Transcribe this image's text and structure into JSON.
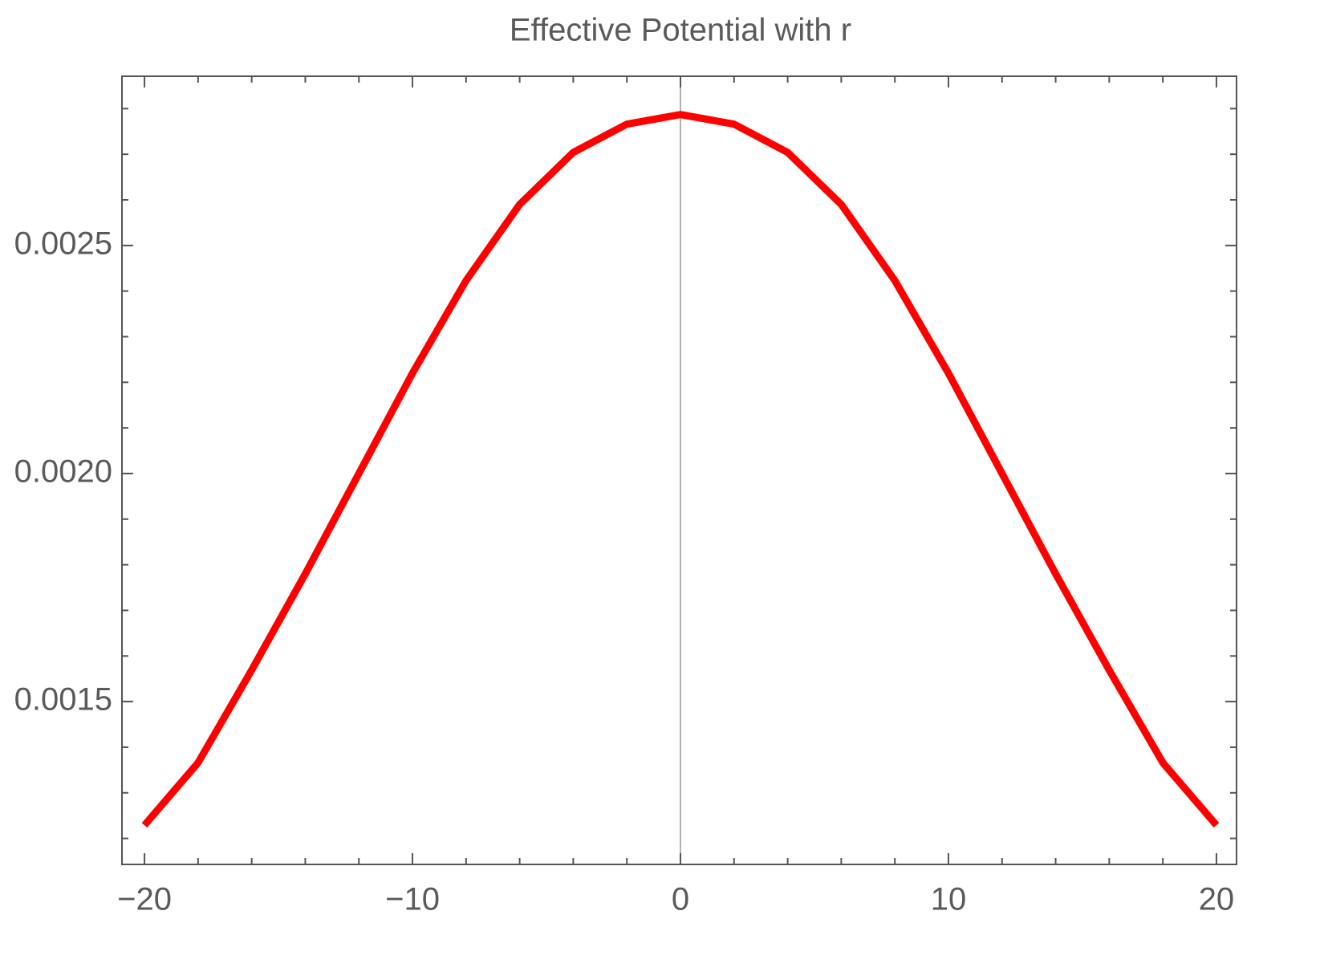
{
  "chart_data": {
    "type": "line",
    "title": "Effective Potential with r",
    "x": [
      -20,
      -18,
      -16,
      -14,
      -12,
      -10,
      -8,
      -6,
      -4,
      -2,
      0,
      2,
      4,
      6,
      8,
      10,
      12,
      14,
      16,
      18,
      20
    ],
    "series": [
      {
        "color": "#ff0000",
        "values": [
          0.001229,
          0.001366,
          0.001569,
          0.00178,
          0.002,
          0.00222,
          0.002423,
          0.00259,
          0.002704,
          0.002766,
          0.002787,
          0.002766,
          0.002704,
          0.00259,
          0.002423,
          0.00222,
          0.002,
          0.00178,
          0.001569,
          0.001366,
          0.001229
        ]
      }
    ],
    "xlim": [
      -20.84,
      20.75
    ],
    "ylim": [
      0.001143,
      0.002871
    ],
    "xticks": [
      {
        "value": -20,
        "label": "−20"
      },
      {
        "value": -10,
        "label": "−10"
      },
      0,
      10,
      20
    ],
    "yticks": [
      0.0015,
      {
        "value": 0.002,
        "label": "0.0020"
      },
      0.0025
    ],
    "xminorticks": [
      -18,
      -16,
      -14,
      -12,
      -8,
      -6,
      -4,
      -2,
      2,
      4,
      6,
      8,
      12,
      14,
      16,
      18
    ],
    "yminorticks": [
      0.0012,
      0.0013,
      0.0014,
      0.0016,
      0.0017,
      0.0018,
      0.0019,
      0.0021,
      0.0022,
      0.0023,
      0.0024,
      0.0026,
      0.0027,
      0.0028
    ],
    "grid": false
  }
}
